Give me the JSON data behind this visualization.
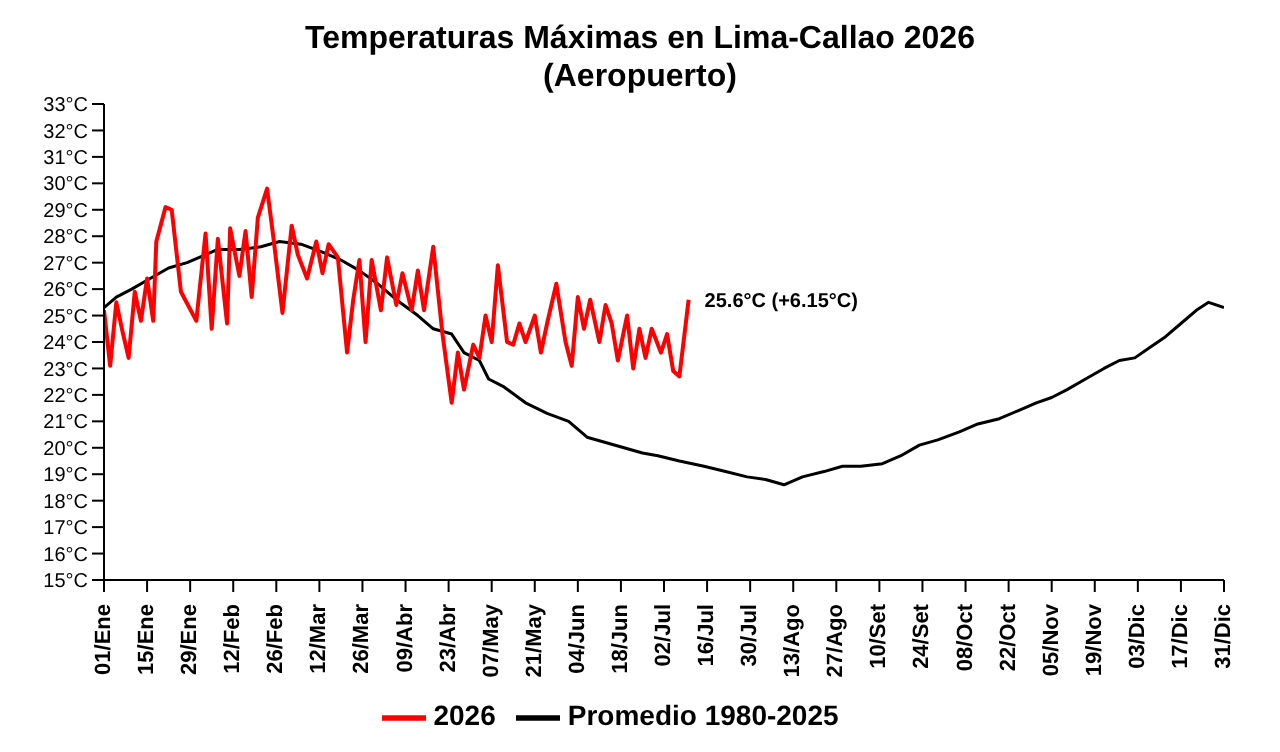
{
  "chart_data": {
    "type": "line",
    "title": "Temperaturas Máximas en Lima-Callao 2026",
    "subtitle": "(Aeropuerto)",
    "xlim": [
      "--01-01",
      "--12-31"
    ],
    "xticks": [
      {
        "value": "--01-01",
        "label": "01/Ene"
      },
      {
        "value": "--01-15",
        "label": "15/Ene"
      },
      {
        "value": "--01-29",
        "label": "29/Ene"
      },
      {
        "value": "--02-12",
        "label": "12/Feb"
      },
      {
        "value": "--02-26",
        "label": "26/Feb"
      },
      {
        "value": "--03-12",
        "label": "12/Mar"
      },
      {
        "value": "--03-26",
        "label": "26/Mar"
      },
      {
        "value": "--04-09",
        "label": "09/Abr"
      },
      {
        "value": "--04-23",
        "label": "23/Abr"
      },
      {
        "value": "--05-07",
        "label": "07/May"
      },
      {
        "value": "--05-21",
        "label": "21/May"
      },
      {
        "value": "--06-04",
        "label": "04/Jun"
      },
      {
        "value": "--06-18",
        "label": "18/Jun"
      },
      {
        "value": "--07-02",
        "label": "02/Jul"
      },
      {
        "value": "--07-16",
        "label": "16/Jul"
      },
      {
        "value": "--07-30",
        "label": "30/Jul"
      },
      {
        "value": "--08-13",
        "label": "13/Ago"
      },
      {
        "value": "--08-27",
        "label": "27/Ago"
      },
      {
        "value": "--09-10",
        "label": "10/Set"
      },
      {
        "value": "--09-24",
        "label": "24/Set"
      },
      {
        "value": "--10-08",
        "label": "08/Oct"
      },
      {
        "value": "--10-22",
        "label": "22/Oct"
      },
      {
        "value": "--11-05",
        "label": "05/Nov"
      },
      {
        "value": "--11-19",
        "label": "19/Nov"
      },
      {
        "value": "--12-03",
        "label": "03/Dic"
      },
      {
        "value": "--12-17",
        "label": "17/Dic"
      },
      {
        "value": "--12-31",
        "label": "31/Dic"
      }
    ],
    "ylim": [
      15,
      33
    ],
    "yticks": [
      {
        "value": 15,
        "label": "15°C"
      },
      {
        "value": 16,
        "label": "16°C"
      },
      {
        "value": 17,
        "label": "17°C"
      },
      {
        "value": 18,
        "label": "18°C"
      },
      {
        "value": 19,
        "label": "19°C"
      },
      {
        "value": 20,
        "label": "20°C"
      },
      {
        "value": 21,
        "label": "21°C"
      },
      {
        "value": 22,
        "label": "22°C"
      },
      {
        "value": 23,
        "label": "23°C"
      },
      {
        "value": 24,
        "label": "24°C"
      },
      {
        "value": 25,
        "label": "25°C"
      },
      {
        "value": 26,
        "label": "26°C"
      },
      {
        "value": 27,
        "label": "27°C"
      },
      {
        "value": 28,
        "label": "28°C"
      },
      {
        "value": 29,
        "label": "29°C"
      },
      {
        "value": 30,
        "label": "30°C"
      },
      {
        "value": 31,
        "label": "31°C"
      },
      {
        "value": 32,
        "label": "32°C"
      },
      {
        "value": 33,
        "label": "33°C"
      }
    ],
    "grid": false,
    "legend": "bottom",
    "marker": "none",
    "line_style": "solid",
    "annotations": [
      {
        "text": "25.6°C (+6.15°C)",
        "x": "--07-10",
        "y": 25.6
      }
    ],
    "series": [
      {
        "name": "Promedio 1980-2025",
        "color": "#000000",
        "x": [
          "--01-01",
          "--01-05",
          "--01-10",
          "--01-16",
          "--01-22",
          "--01-28",
          "--02-01",
          "--02-07",
          "--02-14",
          "--02-21",
          "--02-27",
          "--03-06",
          "--03-13",
          "--03-19",
          "--03-25",
          "--03-31",
          "--04-06",
          "--04-13",
          "--04-18",
          "--04-24",
          "--04-28",
          "--05-03",
          "--05-06",
          "--05-11",
          "--05-18",
          "--05-25",
          "--06-01",
          "--06-07",
          "--06-13",
          "--06-19",
          "--06-25",
          "--06-30",
          "--07-07",
          "--07-15",
          "--07-22",
          "--07-29",
          "--08-04",
          "--08-10",
          "--08-16",
          "--08-23",
          "--08-29",
          "--09-04",
          "--09-11",
          "--09-17",
          "--09-23",
          "--09-29",
          "--10-06",
          "--10-12",
          "--10-19",
          "--10-25",
          "--10-31",
          "--11-05",
          "--11-10",
          "--11-16",
          "--11-22",
          "--11-27",
          "--12-02",
          "--12-07",
          "--12-12",
          "--12-17",
          "--12-22",
          "--12-26",
          "--12-31"
        ],
        "values": [
          25.3,
          25.7,
          26.0,
          26.4,
          26.8,
          27.0,
          27.2,
          27.5,
          27.5,
          27.6,
          27.8,
          27.7,
          27.4,
          27.1,
          26.7,
          26.2,
          25.6,
          25.0,
          24.5,
          24.3,
          23.6,
          23.3,
          22.6,
          22.3,
          21.7,
          21.3,
          21.0,
          20.4,
          20.2,
          20.0,
          19.8,
          19.7,
          19.5,
          19.3,
          19.1,
          18.9,
          18.8,
          18.6,
          18.9,
          19.1,
          19.3,
          19.3,
          19.4,
          19.7,
          20.1,
          20.3,
          20.6,
          20.9,
          21.1,
          21.4,
          21.7,
          21.9,
          22.2,
          22.6,
          23.0,
          23.3,
          23.4,
          23.8,
          24.2,
          24.7,
          25.2,
          25.5,
          25.3
        ]
      },
      {
        "name": "2026",
        "color": "#ff0000",
        "x": [
          "--01-01",
          "--01-03",
          "--01-05",
          "--01-07",
          "--01-09",
          "--01-11",
          "--01-13",
          "--01-15",
          "--01-17",
          "--01-18",
          "--01-21",
          "--01-23",
          "--01-26",
          "--01-31",
          "--02-03",
          "--02-05",
          "--02-07",
          "--02-10",
          "--02-11",
          "--02-14",
          "--02-16",
          "--02-18",
          "--02-20",
          "--02-23",
          "--02-25",
          "--02-28",
          "--03-03",
          "--03-05",
          "--03-08",
          "--03-11",
          "--03-13",
          "--03-15",
          "--03-18",
          "--03-21",
          "--03-23",
          "--03-25",
          "--03-27",
          "--03-29",
          "--04-01",
          "--04-03",
          "--04-06",
          "--04-08",
          "--04-11",
          "--04-13",
          "--04-15",
          "--04-18",
          "--04-21",
          "--04-24",
          "--04-26",
          "--04-28",
          "--05-01",
          "--05-03",
          "--05-05",
          "--05-07",
          "--05-09",
          "--05-12",
          "--05-14",
          "--05-16",
          "--05-18",
          "--05-21",
          "--05-23",
          "--05-25",
          "--05-28",
          "--05-31",
          "--06-02",
          "--06-04",
          "--06-06",
          "--06-08",
          "--06-11",
          "--06-13",
          "--06-15",
          "--06-17",
          "--06-20",
          "--06-22",
          "--06-24",
          "--06-26",
          "--06-28",
          "--07-01",
          "--07-03",
          "--07-05",
          "--07-07",
          "--07-10"
        ],
        "values": [
          25.2,
          23.1,
          25.5,
          24.4,
          23.4,
          25.9,
          24.8,
          26.4,
          24.8,
          27.8,
          29.1,
          29.0,
          25.9,
          24.8,
          28.1,
          24.5,
          27.9,
          24.7,
          28.3,
          26.5,
          28.2,
          25.7,
          28.7,
          29.8,
          28.0,
          25.1,
          28.4,
          27.3,
          26.4,
          27.8,
          26.6,
          27.7,
          27.2,
          23.6,
          25.6,
          27.1,
          24.0,
          27.1,
          25.2,
          27.2,
          25.4,
          26.6,
          25.2,
          26.7,
          25.2,
          27.6,
          24.3,
          21.7,
          23.6,
          22.2,
          23.9,
          23.4,
          25.0,
          24.0,
          26.9,
          24.0,
          23.9,
          24.7,
          24.0,
          25.0,
          23.6,
          24.7,
          26.2,
          24.0,
          23.1,
          25.7,
          24.5,
          25.6,
          24.0,
          25.4,
          24.7,
          23.3,
          25.0,
          23.0,
          24.5,
          23.4,
          24.5,
          23.6,
          24.3,
          22.9,
          22.7,
          25.6
        ]
      }
    ]
  }
}
